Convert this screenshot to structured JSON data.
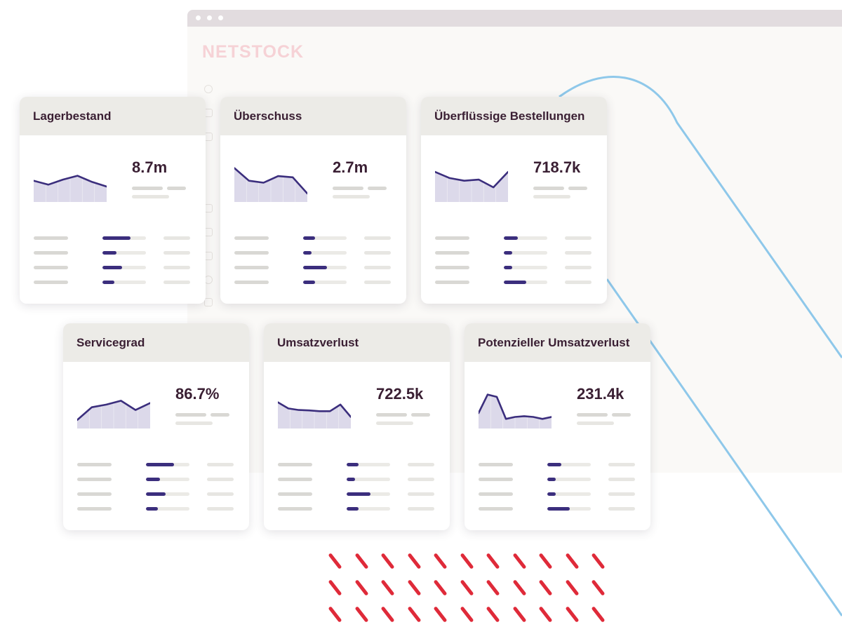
{
  "brand": {
    "logo_text": "NETSTOCK"
  },
  "colors": {
    "accent": "#3b2e7d",
    "chart_fill": "#dcd9ea",
    "dash_red": "#df2a39",
    "curve_blue": "#8ec8ea"
  },
  "sidebar_icons": [
    "circle-icon",
    "square-icon",
    "window-icon",
    "columns-icon",
    "list-icon",
    "chart-icon",
    "nodes-icon",
    "square-icon"
  ],
  "cards": [
    {
      "title": "Lagerbestand",
      "value": "8.7m",
      "sparkline": [
        0.55,
        0.45,
        0.58,
        0.68,
        0.52,
        0.4
      ],
      "bars": [
        0.65,
        0.33,
        0.45,
        0.27
      ]
    },
    {
      "title": "Überschuss",
      "value": "2.7m",
      "sparkline": [
        0.88,
        0.55,
        0.5,
        0.67,
        0.64,
        0.22
      ],
      "bars": [
        0.27,
        0.2,
        0.55,
        0.27
      ]
    },
    {
      "title": "Überflüssige Bestellungen",
      "value": "718.7k",
      "sparkline": [
        0.78,
        0.62,
        0.55,
        0.58,
        0.38,
        0.78
      ],
      "bars": [
        0.33,
        0.2,
        0.2,
        0.52
      ]
    },
    {
      "title": "Servicegrad",
      "value": "86.7%",
      "sparkline": [
        0.22,
        0.55,
        0.62,
        0.72,
        0.48,
        0.66
      ],
      "bars": [
        0.65,
        0.33,
        0.45,
        0.27
      ]
    },
    {
      "title": "Umsatzverlust",
      "value": "722.5k",
      "sparkline": [
        0.68,
        0.52,
        0.48,
        0.47,
        0.45,
        0.45,
        0.62,
        0.3
      ],
      "bars": [
        0.27,
        0.2,
        0.55,
        0.27
      ]
    },
    {
      "title": "Potenzieller Umsatzverlust",
      "value": "231.4k",
      "sparkline": [
        0.4,
        0.88,
        0.82,
        0.25,
        0.3,
        0.32,
        0.3,
        0.25,
        0.3
      ],
      "bars": [
        0.33,
        0.2,
        0.2,
        0.52
      ]
    }
  ]
}
